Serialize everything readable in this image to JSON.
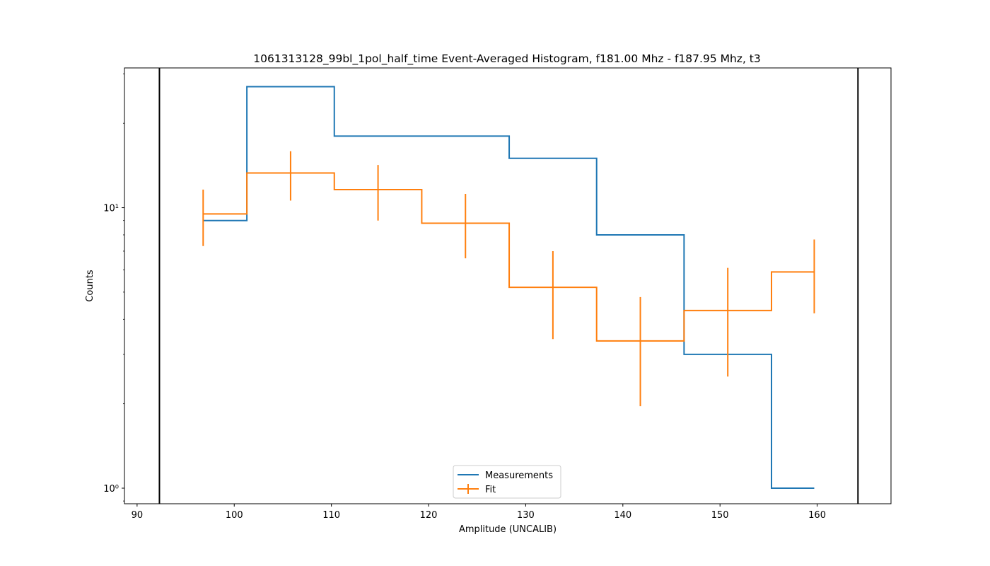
{
  "chart_data": {
    "type": "line",
    "title": "1061313128_99bl_1pol_half_time Event-Averaged Histogram, f181.00 Mhz - f187.95 Mhz, t3",
    "xlabel": "Amplitude (UNCALIB)",
    "ylabel": "Counts",
    "xlim": [
      88.7,
      167.6
    ],
    "ylim": [
      0.88,
      31.5
    ],
    "yscale": "log",
    "grid": false,
    "legend_position": "lower center",
    "x_ticks": [
      90,
      100,
      110,
      120,
      130,
      140,
      150,
      160
    ],
    "x_tick_labels": [
      "90",
      "100",
      "110",
      "120",
      "130",
      "140",
      "150",
      "160"
    ],
    "y_ticks": [
      1,
      10
    ],
    "y_tick_labels": [
      "10⁰",
      "10¹"
    ],
    "vertical_lines": [
      92.3,
      164.2
    ],
    "bin_edges": [
      96.8,
      101.3,
      110.3,
      119.3,
      128.3,
      137.3,
      146.3,
      155.3,
      159.7
    ],
    "series": [
      {
        "name": "Measurements",
        "style": "step",
        "color": "#1f77b4",
        "x": [
          96.8,
          101.3,
          110.3,
          119.3,
          128.3,
          137.3,
          146.3,
          155.3,
          159.7
        ],
        "values": [
          9,
          27,
          18,
          18,
          15,
          8,
          3,
          1,
          1
        ]
      },
      {
        "name": "Fit",
        "style": "step-errorbar",
        "color": "#ff7f0e",
        "x": [
          96.8,
          101.3,
          110.3,
          119.3,
          128.3,
          137.3,
          146.3,
          155.3,
          159.7
        ],
        "values": [
          9.5,
          13.3,
          11.6,
          8.8,
          5.2,
          3.35,
          4.3,
          5.9,
          5.9
        ],
        "errorbars": [
          {
            "x": 96.8,
            "low": 7.3,
            "high": 11.6
          },
          {
            "x": 105.8,
            "low": 10.6,
            "high": 15.9
          },
          {
            "x": 114.8,
            "low": 9.0,
            "high": 14.2
          },
          {
            "x": 123.8,
            "low": 6.6,
            "high": 11.2
          },
          {
            "x": 132.8,
            "low": 3.4,
            "high": 7.0
          },
          {
            "x": 141.8,
            "low": 1.96,
            "high": 4.8
          },
          {
            "x": 150.8,
            "low": 2.5,
            "high": 6.1
          },
          {
            "x": 159.7,
            "low": 4.2,
            "high": 7.7
          }
        ]
      }
    ]
  }
}
